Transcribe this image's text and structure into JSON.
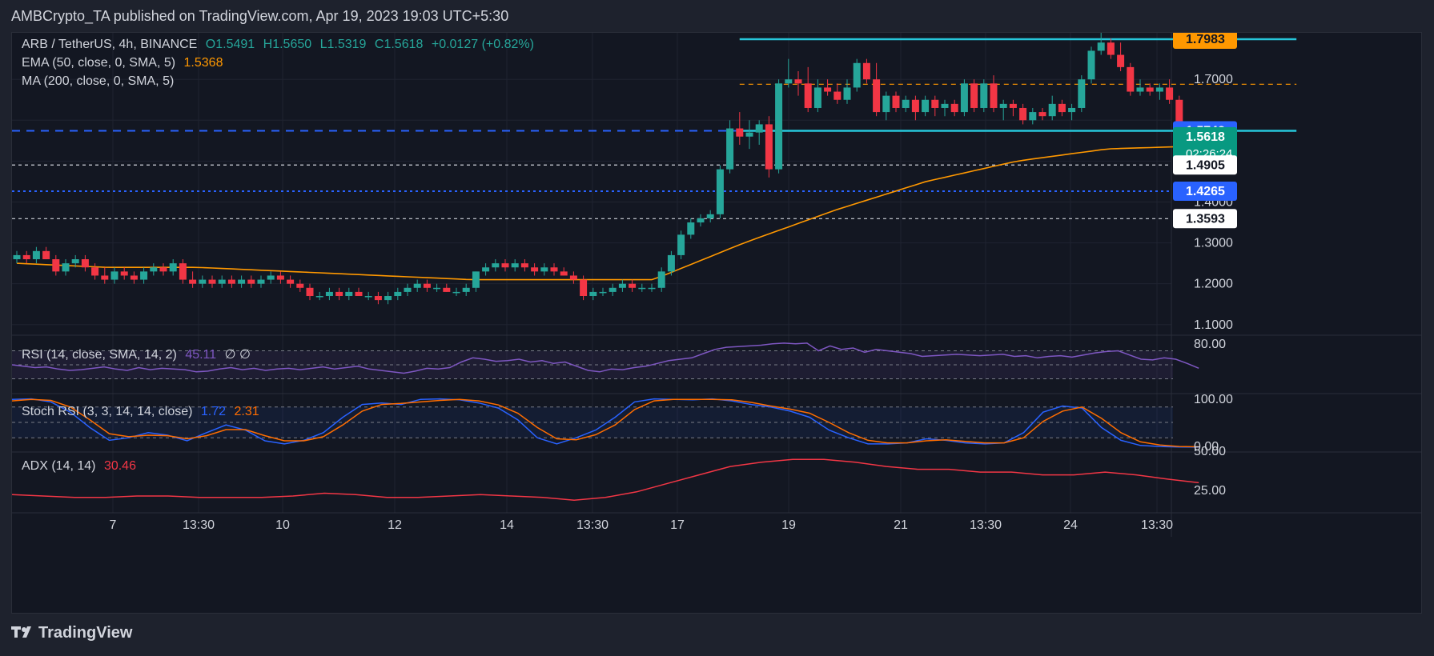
{
  "header": {
    "title": "AMBCrypto_TA published on TradingView.com, Apr 19, 2023 19:03 UTC+5:30"
  },
  "legend": {
    "symbol": "ARB / TetherUS, 4h, BINANCE",
    "open": "O1.5491",
    "high": "H1.5650",
    "low": "L1.5319",
    "close": "C1.5618",
    "change": "+0.0127 (+0.82%)",
    "ema_label": "EMA (50, close, 0, SMA, 5)",
    "ema_value": "1.5368",
    "ma_label": "MA (200, close, 0, SMA, 5)",
    "rsi_label": "RSI (14, close, SMA, 14, 2)",
    "rsi_value": "45.11",
    "rsi_extra": "∅  ∅",
    "stoch_label": "Stoch RSI (3, 3, 14, 14, close)",
    "stoch_k": "1.72",
    "stoch_d": "2.31",
    "adx_label": "ADX (14, 14)",
    "adx_value": "30.46"
  },
  "footer": {
    "brand": "TradingView"
  },
  "colors": {
    "up": "#26a69a",
    "down": "#f23645",
    "ema": "#ff9800",
    "channel": "#26c6da",
    "blue": "#2962ff",
    "rsi": "#7e57c2",
    "stoch_k": "#2962ff",
    "stoch_d": "#ff6d00",
    "adx": "#f23645"
  },
  "chart_data": {
    "type": "candlestick",
    "currency": "USDT",
    "price_axis": {
      "ticks": [
        "1.1000",
        "1.2000",
        "1.3000",
        "1.7000"
      ],
      "range": [
        1.08,
        1.81
      ]
    },
    "x_ticks": [
      "7",
      "13:30",
      "10",
      "12",
      "14",
      "13:30",
      "17",
      "19",
      "21",
      "13:30",
      "24",
      "13:30"
    ],
    "price_labels": [
      {
        "value": 1.7983,
        "text": "1.7983",
        "style": "orange"
      },
      {
        "value": 1.5742,
        "text": "1.5742",
        "style": "blue"
      },
      {
        "value": 1.5618,
        "text": "1.5618",
        "sub": "02:26:24",
        "style": "green"
      },
      {
        "value": 1.4905,
        "text": "1.4905",
        "style": "white"
      },
      {
        "value": 1.4265,
        "text": "1.4265",
        "style": "blue"
      },
      {
        "value": 1.3593,
        "text": "1.3593",
        "style": "white"
      }
    ],
    "partially_hidden_tick": "1.4000",
    "horizontal_lines": [
      {
        "value": 1.7983,
        "style": "orange-dashed"
      },
      {
        "value": 1.688,
        "style": "orange-dashed"
      },
      {
        "value": 1.5742,
        "style": "blue-dashed"
      },
      {
        "value": 1.4905,
        "style": "white-dashed"
      },
      {
        "value": 1.4265,
        "style": "blue-dotted"
      },
      {
        "value": 1.3593,
        "style": "white-dashed"
      }
    ],
    "channel": {
      "top": 1.7983,
      "bottom": 1.5742,
      "from_candle": 74,
      "to_candle": 131
    },
    "candles_ohlc": [
      [
        1.26,
        1.28,
        1.25,
        1.27
      ],
      [
        1.27,
        1.28,
        1.25,
        1.26
      ],
      [
        1.26,
        1.29,
        1.25,
        1.28
      ],
      [
        1.28,
        1.29,
        1.26,
        1.26
      ],
      [
        1.26,
        1.27,
        1.22,
        1.23
      ],
      [
        1.23,
        1.26,
        1.22,
        1.25
      ],
      [
        1.25,
        1.27,
        1.24,
        1.26
      ],
      [
        1.26,
        1.27,
        1.23,
        1.24
      ],
      [
        1.24,
        1.25,
        1.21,
        1.22
      ],
      [
        1.22,
        1.24,
        1.2,
        1.21
      ],
      [
        1.21,
        1.24,
        1.2,
        1.23
      ],
      [
        1.23,
        1.24,
        1.21,
        1.22
      ],
      [
        1.22,
        1.23,
        1.2,
        1.21
      ],
      [
        1.21,
        1.24,
        1.2,
        1.23
      ],
      [
        1.23,
        1.25,
        1.22,
        1.24
      ],
      [
        1.24,
        1.25,
        1.22,
        1.23
      ],
      [
        1.23,
        1.26,
        1.22,
        1.25
      ],
      [
        1.25,
        1.26,
        1.2,
        1.21
      ],
      [
        1.21,
        1.23,
        1.19,
        1.2
      ],
      [
        1.2,
        1.22,
        1.19,
        1.21
      ],
      [
        1.21,
        1.22,
        1.19,
        1.2
      ],
      [
        1.2,
        1.22,
        1.19,
        1.21
      ],
      [
        1.21,
        1.22,
        1.19,
        1.2
      ],
      [
        1.2,
        1.22,
        1.19,
        1.21
      ],
      [
        1.21,
        1.22,
        1.19,
        1.2
      ],
      [
        1.2,
        1.22,
        1.19,
        1.21
      ],
      [
        1.21,
        1.23,
        1.2,
        1.22
      ],
      [
        1.22,
        1.23,
        1.2,
        1.21
      ],
      [
        1.21,
        1.22,
        1.19,
        1.2
      ],
      [
        1.2,
        1.21,
        1.18,
        1.19
      ],
      [
        1.19,
        1.2,
        1.16,
        1.17
      ],
      [
        1.17,
        1.18,
        1.16,
        1.17
      ],
      [
        1.17,
        1.19,
        1.16,
        1.18
      ],
      [
        1.18,
        1.19,
        1.16,
        1.17
      ],
      [
        1.17,
        1.19,
        1.16,
        1.18
      ],
      [
        1.18,
        1.19,
        1.17,
        1.17
      ],
      [
        1.17,
        1.18,
        1.16,
        1.17
      ],
      [
        1.17,
        1.18,
        1.15,
        1.16
      ],
      [
        1.16,
        1.18,
        1.15,
        1.17
      ],
      [
        1.17,
        1.19,
        1.16,
        1.18
      ],
      [
        1.18,
        1.2,
        1.17,
        1.19
      ],
      [
        1.19,
        1.21,
        1.18,
        1.2
      ],
      [
        1.2,
        1.21,
        1.18,
        1.19
      ],
      [
        1.19,
        1.2,
        1.18,
        1.19
      ],
      [
        1.19,
        1.2,
        1.18,
        1.18
      ],
      [
        1.18,
        1.19,
        1.17,
        1.18
      ],
      [
        1.18,
        1.2,
        1.17,
        1.19
      ],
      [
        1.19,
        1.23,
        1.18,
        1.23
      ],
      [
        1.23,
        1.25,
        1.22,
        1.24
      ],
      [
        1.24,
        1.26,
        1.23,
        1.25
      ],
      [
        1.25,
        1.26,
        1.23,
        1.24
      ],
      [
        1.24,
        1.26,
        1.23,
        1.25
      ],
      [
        1.25,
        1.26,
        1.23,
        1.24
      ],
      [
        1.24,
        1.25,
        1.22,
        1.23
      ],
      [
        1.23,
        1.25,
        1.22,
        1.24
      ],
      [
        1.24,
        1.25,
        1.22,
        1.23
      ],
      [
        1.23,
        1.24,
        1.22,
        1.22
      ],
      [
        1.22,
        1.23,
        1.2,
        1.21
      ],
      [
        1.21,
        1.22,
        1.16,
        1.17
      ],
      [
        1.17,
        1.19,
        1.16,
        1.18
      ],
      [
        1.18,
        1.19,
        1.17,
        1.18
      ],
      [
        1.18,
        1.2,
        1.17,
        1.19
      ],
      [
        1.19,
        1.21,
        1.18,
        1.2
      ],
      [
        1.2,
        1.21,
        1.18,
        1.19
      ],
      [
        1.19,
        1.2,
        1.18,
        1.19
      ],
      [
        1.19,
        1.2,
        1.18,
        1.19
      ],
      [
        1.19,
        1.24,
        1.18,
        1.23
      ],
      [
        1.23,
        1.28,
        1.22,
        1.27
      ],
      [
        1.27,
        1.33,
        1.26,
        1.32
      ],
      [
        1.32,
        1.36,
        1.31,
        1.35
      ],
      [
        1.35,
        1.37,
        1.34,
        1.36
      ],
      [
        1.36,
        1.38,
        1.35,
        1.37
      ],
      [
        1.37,
        1.49,
        1.36,
        1.48
      ],
      [
        1.48,
        1.6,
        1.47,
        1.58
      ],
      [
        1.58,
        1.62,
        1.54,
        1.56
      ],
      [
        1.56,
        1.6,
        1.53,
        1.57
      ],
      [
        1.57,
        1.6,
        1.54,
        1.59
      ],
      [
        1.59,
        1.61,
        1.46,
        1.48
      ],
      [
        1.48,
        1.7,
        1.47,
        1.69
      ],
      [
        1.69,
        1.75,
        1.68,
        1.7
      ],
      [
        1.7,
        1.72,
        1.66,
        1.69
      ],
      [
        1.69,
        1.73,
        1.62,
        1.63
      ],
      [
        1.63,
        1.7,
        1.62,
        1.68
      ],
      [
        1.68,
        1.7,
        1.66,
        1.67
      ],
      [
        1.67,
        1.69,
        1.64,
        1.65
      ],
      [
        1.65,
        1.7,
        1.64,
        1.68
      ],
      [
        1.68,
        1.75,
        1.67,
        1.74
      ],
      [
        1.74,
        1.75,
        1.69,
        1.7
      ],
      [
        1.7,
        1.74,
        1.61,
        1.62
      ],
      [
        1.62,
        1.67,
        1.6,
        1.66
      ],
      [
        1.66,
        1.67,
        1.62,
        1.63
      ],
      [
        1.63,
        1.66,
        1.62,
        1.65
      ],
      [
        1.65,
        1.66,
        1.6,
        1.62
      ],
      [
        1.62,
        1.66,
        1.61,
        1.65
      ],
      [
        1.65,
        1.66,
        1.61,
        1.63
      ],
      [
        1.63,
        1.65,
        1.61,
        1.64
      ],
      [
        1.64,
        1.65,
        1.61,
        1.62
      ],
      [
        1.62,
        1.7,
        1.61,
        1.69
      ],
      [
        1.69,
        1.7,
        1.62,
        1.63
      ],
      [
        1.63,
        1.7,
        1.62,
        1.69
      ],
      [
        1.69,
        1.71,
        1.62,
        1.63
      ],
      [
        1.63,
        1.65,
        1.6,
        1.64
      ],
      [
        1.64,
        1.65,
        1.61,
        1.63
      ],
      [
        1.63,
        1.64,
        1.59,
        1.6
      ],
      [
        1.6,
        1.63,
        1.59,
        1.62
      ],
      [
        1.62,
        1.63,
        1.6,
        1.61
      ],
      [
        1.61,
        1.66,
        1.6,
        1.64
      ],
      [
        1.64,
        1.65,
        1.61,
        1.62
      ],
      [
        1.62,
        1.64,
        1.6,
        1.63
      ],
      [
        1.63,
        1.71,
        1.62,
        1.7
      ],
      [
        1.7,
        1.78,
        1.69,
        1.77
      ],
      [
        1.77,
        1.82,
        1.76,
        1.79
      ],
      [
        1.79,
        1.8,
        1.75,
        1.76
      ],
      [
        1.76,
        1.79,
        1.72,
        1.73
      ],
      [
        1.73,
        1.74,
        1.66,
        1.67
      ],
      [
        1.67,
        1.7,
        1.66,
        1.68
      ],
      [
        1.68,
        1.69,
        1.66,
        1.67
      ],
      [
        1.67,
        1.69,
        1.65,
        1.68
      ],
      [
        1.68,
        1.7,
        1.64,
        1.65
      ],
      [
        1.65,
        1.66,
        1.54,
        1.57
      ],
      [
        1.57,
        1.58,
        1.5,
        1.55
      ],
      [
        1.55,
        1.57,
        1.53,
        1.56
      ]
    ],
    "ema50": [
      1.25,
      1.24,
      1.24,
      1.23,
      1.22,
      1.21,
      1.21,
      1.21,
      1.3,
      1.38,
      1.45,
      1.5,
      1.53,
      1.5368
    ],
    "rsi": {
      "axis_ticks": [
        "80.00"
      ],
      "levels": [
        70,
        50,
        30
      ],
      "values": [
        50,
        48,
        46,
        47,
        44,
        42,
        43,
        45,
        47,
        44,
        42,
        46,
        43,
        45,
        44,
        43,
        40,
        41,
        44,
        46,
        43,
        45,
        42,
        44,
        45,
        43,
        45,
        47,
        44,
        46,
        48,
        44,
        42,
        40,
        38,
        41,
        45,
        44,
        46,
        54,
        60,
        58,
        55,
        56,
        58,
        54,
        56,
        52,
        54,
        48,
        42,
        40,
        44,
        43,
        46,
        48,
        52,
        56,
        58,
        60,
        66,
        72,
        75,
        76,
        77,
        78,
        80,
        81,
        80,
        81,
        70,
        77,
        72,
        74,
        68,
        72,
        70,
        68,
        66,
        62,
        63,
        64,
        65,
        64,
        63,
        64,
        65,
        62,
        63,
        60,
        62,
        63,
        61,
        64,
        67,
        69,
        70,
        64,
        58,
        57,
        60,
        58,
        52,
        45.11
      ]
    },
    "stoch_rsi": {
      "axis_ticks": [
        "100.00",
        "0.00"
      ],
      "levels": [
        80,
        50,
        20
      ],
      "k": [
        95,
        96,
        90,
        70,
        40,
        15,
        20,
        30,
        25,
        14,
        30,
        45,
        35,
        14,
        8,
        15,
        30,
        60,
        85,
        88,
        85,
        95,
        96,
        94,
        88,
        78,
        55,
        20,
        8,
        20,
        35,
        60,
        90,
        96,
        95,
        94,
        96,
        92,
        85,
        80,
        72,
        60,
        35,
        20,
        8,
        8,
        10,
        18,
        15,
        10,
        8,
        10,
        30,
        70,
        82,
        78,
        40,
        15,
        5,
        3,
        2,
        1.72
      ],
      "d": [
        92,
        95,
        93,
        80,
        55,
        28,
        22,
        25,
        24,
        18,
        24,
        36,
        36,
        24,
        14,
        14,
        22,
        45,
        72,
        85,
        87,
        90,
        93,
        95,
        92,
        84,
        68,
        40,
        18,
        16,
        26,
        45,
        75,
        92,
        95,
        95,
        95,
        94,
        89,
        82,
        76,
        68,
        50,
        30,
        15,
        10,
        10,
        14,
        16,
        13,
        10,
        10,
        20,
        52,
        72,
        80,
        58,
        30,
        12,
        6,
        3,
        2.31
      ]
    },
    "adx": {
      "axis_ticks": [
        "50.00",
        "25.00"
      ],
      "values": [
        22,
        21,
        20,
        20,
        21,
        21,
        20,
        20,
        20,
        21,
        23,
        22,
        20,
        20,
        21,
        22,
        21,
        20,
        18,
        20,
        24,
        30,
        36,
        42,
        45,
        47,
        47,
        45,
        42,
        40,
        40,
        38,
        38,
        36,
        36,
        38,
        36,
        33,
        30.46
      ]
    }
  }
}
